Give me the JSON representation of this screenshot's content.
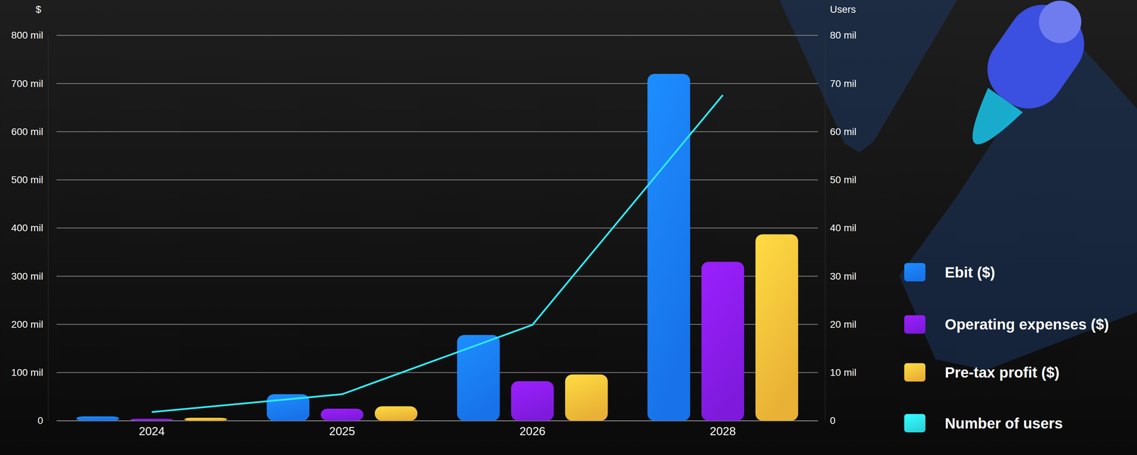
{
  "chart_data": {
    "type": "bar",
    "categories": [
      "2024",
      "2025",
      "2026",
      "2028"
    ],
    "y_label": "$",
    "y2_label": "Users",
    "ylim": [
      0,
      800
    ],
    "yticks": [
      0,
      {
        "value": 100,
        "label": "100 mil"
      },
      {
        "value": 200,
        "label": "200 mil"
      },
      {
        "value": 300,
        "label": "300 mil"
      },
      {
        "value": 400,
        "label": "400 mil"
      },
      {
        "value": 500,
        "label": "500 mil"
      },
      {
        "value": 600,
        "label": "600 mil"
      },
      {
        "value": 700,
        "label": "700 mil"
      },
      {
        "value": 800,
        "label": "800 mil"
      }
    ],
    "y2lim": [
      0,
      80
    ],
    "y2ticks": [
      0,
      {
        "value": 10,
        "label": "10 mil"
      },
      {
        "value": 20,
        "label": "20 mil"
      },
      {
        "value": 30,
        "label": "30 mil"
      },
      {
        "value": 40,
        "label": "40 mil"
      },
      {
        "value": 50,
        "label": "50 mil"
      },
      {
        "value": 60,
        "label": "60 mil"
      },
      {
        "value": 70,
        "label": "70 mil"
      },
      {
        "value": 80,
        "label": "80 mil"
      }
    ],
    "grid": true,
    "legend": "right",
    "series": [
      {
        "name": "Ebit ($)",
        "color": "#1a7dff",
        "values": [
          9,
          55,
          178,
          720
        ]
      },
      {
        "name": "Operating expenses ($)",
        "color": "#8a1cf0",
        "values": [
          4,
          25,
          82,
          330
        ]
      },
      {
        "name": "Pre-tax profit ($)",
        "color": "#ffc23a",
        "values": [
          6,
          30,
          96,
          387
        ]
      },
      {
        "name": "Number of users",
        "type": "line",
        "axis": "y2",
        "color": "#2ee8f2",
        "values": [
          1.8,
          5.5,
          19.9,
          67.6
        ]
      }
    ]
  }
}
